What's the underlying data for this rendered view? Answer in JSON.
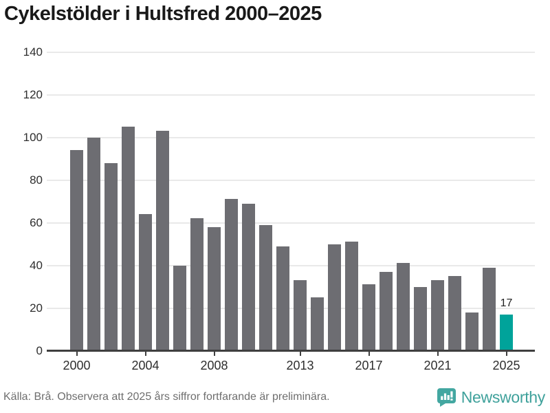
{
  "title": "Cykelstölder i Hultsfred 2000–2025",
  "chart_data": {
    "type": "bar",
    "title": "Cykelstölder i Hultsfred 2000–2025",
    "categories": [
      2000,
      2001,
      2002,
      2003,
      2004,
      2005,
      2006,
      2007,
      2008,
      2009,
      2010,
      2011,
      2012,
      2013,
      2014,
      2015,
      2016,
      2017,
      2018,
      2019,
      2020,
      2021,
      2022,
      2023,
      2024,
      2025
    ],
    "values": [
      94,
      100,
      88,
      105,
      64,
      103,
      40,
      62,
      58,
      71,
      69,
      59,
      49,
      33,
      25,
      50,
      51,
      31,
      37,
      41,
      30,
      33,
      35,
      18,
      39,
      17
    ],
    "xlabel": "",
    "ylabel": "",
    "ylim": [
      0,
      140
    ],
    "y_ticks": [
      0,
      20,
      40,
      60,
      80,
      100,
      120,
      140
    ],
    "x_tick_years": [
      2000,
      2004,
      2008,
      2013,
      2017,
      2021,
      2025
    ],
    "grid": "horizontal",
    "legend": "none",
    "highlight_index": 25,
    "highlight_value_label": "17",
    "bar_color": "#6d6d72",
    "highlight_color": "#00a39a"
  },
  "footer": {
    "source_note": "Källa: Brå. Observera att 2025 års siffror fortfarande är preliminära.",
    "brand": "Newsworthy"
  },
  "colors": {
    "background": "#ffffff",
    "title_text": "#191919",
    "axis_line": "#3f3f3f",
    "gridline": "#e9e9e9",
    "tick_text": "#2e2e2e",
    "footer_text": "#6e6e6e",
    "logo_teal": "#43a7a1",
    "brand_text": "#3fa19b"
  },
  "icons": {
    "brand_icon": "newsworthy-speech-bubble-chart-icon"
  }
}
